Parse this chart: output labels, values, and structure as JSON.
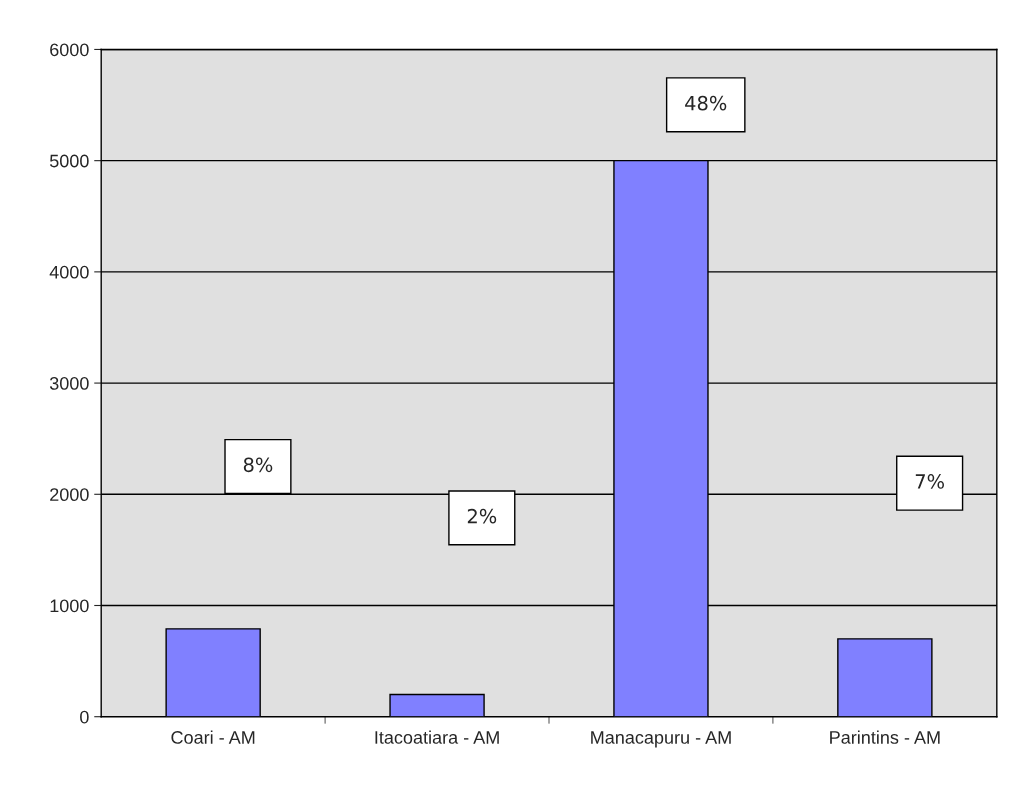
{
  "chart_data": {
    "type": "bar",
    "categories": [
      "Coari - AM",
      "Itacoatiara - AM",
      "Manacapuru - AM",
      "Parintins - AM"
    ],
    "values": [
      790,
      200,
      5000,
      700
    ],
    "color": "#8080ff",
    "ylim": [
      0,
      6000
    ],
    "yticks": [
      0,
      1000,
      2000,
      3000,
      4000,
      5000,
      6000
    ],
    "grid": "y",
    "annotations": [
      "8%",
      "2%",
      "48%",
      "7%"
    ]
  }
}
